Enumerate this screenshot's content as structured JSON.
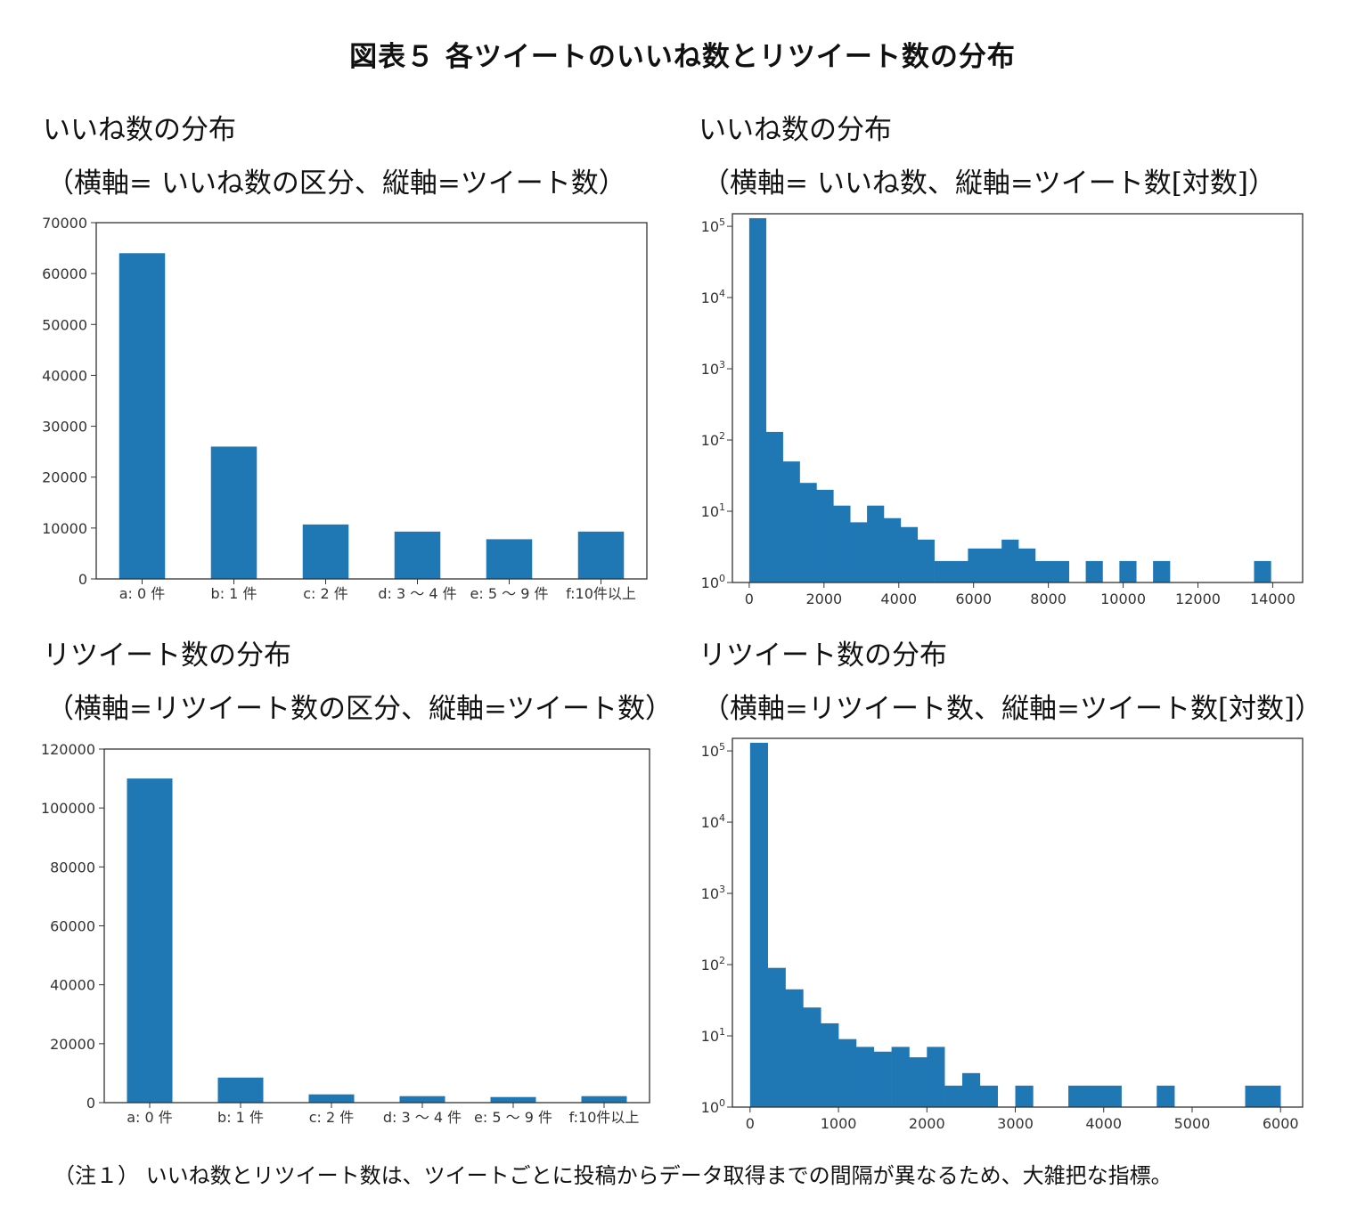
{
  "figure_title": "図表５ 各ツイートのいいね数とリツイート数の分布",
  "panels": {
    "likes_cat": {
      "title": "いいね数の分布",
      "subtitle": "（横軸= いいね数の区分、縦軸=ツイート数）"
    },
    "likes_hist": {
      "title": "いいね数の分布",
      "subtitle": "（横軸= いいね数、縦軸=ツイート数[対数]）"
    },
    "rt_cat": {
      "title": "リツイート数の分布",
      "subtitle": "（横軸=リツイート数の区分、縦軸=ツイート数）"
    },
    "rt_hist": {
      "title": "リツイート数の分布",
      "subtitle": "（横軸=リツイート数、縦軸=ツイート数[対数]）"
    }
  },
  "note": "（注１） いいね数とリツイート数は、ツイートごとに投稿からデータ取得までの間隔が異なるため、大雑把な指標。",
  "colors": {
    "bar": "#1f77b4",
    "axis": "#333333"
  },
  "chart_data": [
    {
      "id": "likes_cat",
      "type": "bar",
      "categories": [
        "a: 0 件",
        "b: 1 件",
        "c: 2 件",
        "d: 3 ～ 4 件",
        "e: 5 ～ 9 件",
        "f:10件以上"
      ],
      "values": [
        64000,
        26000,
        10700,
        9300,
        7800,
        9300
      ],
      "ylim": [
        0,
        70000
      ],
      "yticks": [
        0,
        10000,
        20000,
        30000,
        40000,
        50000,
        60000,
        70000
      ],
      "xlabel": "",
      "ylabel": "",
      "grid": false
    },
    {
      "id": "likes_hist",
      "type": "bar",
      "subtype": "histogram",
      "yscale": "log",
      "bin_start": 0,
      "bin_width": 450,
      "counts": [
        130000,
        130,
        50,
        25,
        20,
        12,
        7,
        12,
        8,
        6,
        4,
        2,
        2,
        3,
        3,
        4,
        3,
        2,
        2,
        0,
        2,
        0,
        2,
        0,
        2,
        0,
        0,
        0,
        0,
        0,
        2
      ],
      "xlim": [
        -450,
        14800
      ],
      "xticks": [
        0,
        2000,
        4000,
        6000,
        8000,
        10000,
        12000,
        14000
      ],
      "ylim": [
        1,
        150000
      ],
      "yticks": [
        {
          "v": 1,
          "base": "10",
          "exp": "0"
        },
        {
          "v": 10,
          "base": "10",
          "exp": "1"
        },
        {
          "v": 100,
          "base": "10",
          "exp": "2"
        },
        {
          "v": 1000,
          "base": "10",
          "exp": "3"
        },
        {
          "v": 10000,
          "base": "10",
          "exp": "4"
        },
        {
          "v": 100000,
          "base": "10",
          "exp": "5"
        }
      ],
      "xlabel": "",
      "ylabel": "",
      "grid": false
    },
    {
      "id": "rt_cat",
      "type": "bar",
      "categories": [
        "a: 0 件",
        "b: 1 件",
        "c: 2 件",
        "d: 3 ～ 4 件",
        "e: 5 ～ 9 件",
        "f:10件以上"
      ],
      "values": [
        110000,
        8500,
        2800,
        2200,
        1900,
        2200
      ],
      "ylim": [
        0,
        120000
      ],
      "yticks": [
        0,
        20000,
        40000,
        60000,
        80000,
        100000,
        120000
      ],
      "xlabel": "",
      "ylabel": "",
      "grid": false
    },
    {
      "id": "rt_hist",
      "type": "bar",
      "subtype": "histogram",
      "yscale": "log",
      "bin_start": 0,
      "bin_width": 200,
      "counts": [
        130000,
        90,
        45,
        25,
        15,
        9,
        7,
        6,
        7,
        5,
        7,
        2,
        3,
        2,
        0,
        2,
        0,
        0,
        2,
        2,
        2,
        0,
        0,
        2,
        0,
        0,
        0,
        0,
        2,
        2
      ],
      "xlim": [
        -200,
        6250
      ],
      "xticks": [
        0,
        1000,
        2000,
        3000,
        4000,
        5000,
        6000
      ],
      "ylim": [
        1,
        150000
      ],
      "yticks": [
        {
          "v": 1,
          "base": "10",
          "exp": "0"
        },
        {
          "v": 10,
          "base": "10",
          "exp": "1"
        },
        {
          "v": 100,
          "base": "10",
          "exp": "2"
        },
        {
          "v": 1000,
          "base": "10",
          "exp": "3"
        },
        {
          "v": 10000,
          "base": "10",
          "exp": "4"
        },
        {
          "v": 100000,
          "base": "10",
          "exp": "5"
        }
      ],
      "xlabel": "",
      "ylabel": "",
      "grid": false
    }
  ]
}
